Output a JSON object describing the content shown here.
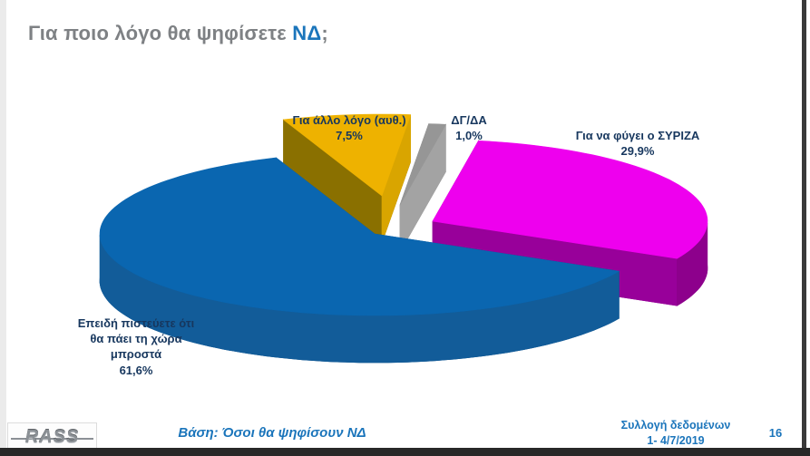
{
  "header": {
    "question_prefix": "Για ποιο λόγο θα ψηφίσετε ",
    "question_highlight": "ΝΔ",
    "question_punctuation": ";"
  },
  "chart_data": {
    "type": "pie",
    "title": "Για ποιο λόγο θα ψηφίσετε ΝΔ;",
    "unit": "%",
    "legend_position": "none",
    "style": "3d-exploded",
    "label_color": "#17375e",
    "slices": [
      {
        "label": "Επειδή πιστεύετε ότι\nθα πάει τη χώρα\nμπροστά",
        "value": 61.6,
        "value_label": "61,6%",
        "color": "#0a66b0",
        "side_color": "#0d4c85",
        "cut_left": "#0c4a80",
        "cut_right": "#0d4c85",
        "skirt_color": "#125c99"
      },
      {
        "label": "Για να φύγει ο ΣΥΡΙΖΑ",
        "value": 29.9,
        "value_label": "29,9%",
        "color": "#ee00ee",
        "side_color": "#90008f",
        "cut_left": "#90008f",
        "cut_right": "#98009a",
        "skirt_color": "#8d008c"
      },
      {
        "label": "Για άλλο λόγο (αυθ.)",
        "value": 7.5,
        "value_label": "7,5%",
        "color": "#eeb200",
        "side_color": "#7d6400",
        "cut_left": "#8a7000",
        "cut_right": "#d9a500",
        "skirt_color": "#7d6400"
      },
      {
        "label": "ΔΓ/ΔΑ",
        "value": 1.0,
        "value_label": "1,0%",
        "color": "#969696",
        "side_color": "#6d6d6d",
        "cut_left": "#6d6d6d",
        "cut_right": "#a3a3a3",
        "skirt_color": "#6d6d6d"
      }
    ]
  },
  "footer": {
    "base_note": "Βάση: Όσοι θα ψηφίσουν ΝΔ",
    "collection_label": "Συλλογή δεδομένων",
    "collection_dates": "1- 4/7/2019",
    "page_number": "16",
    "logo_text": "RASS"
  }
}
